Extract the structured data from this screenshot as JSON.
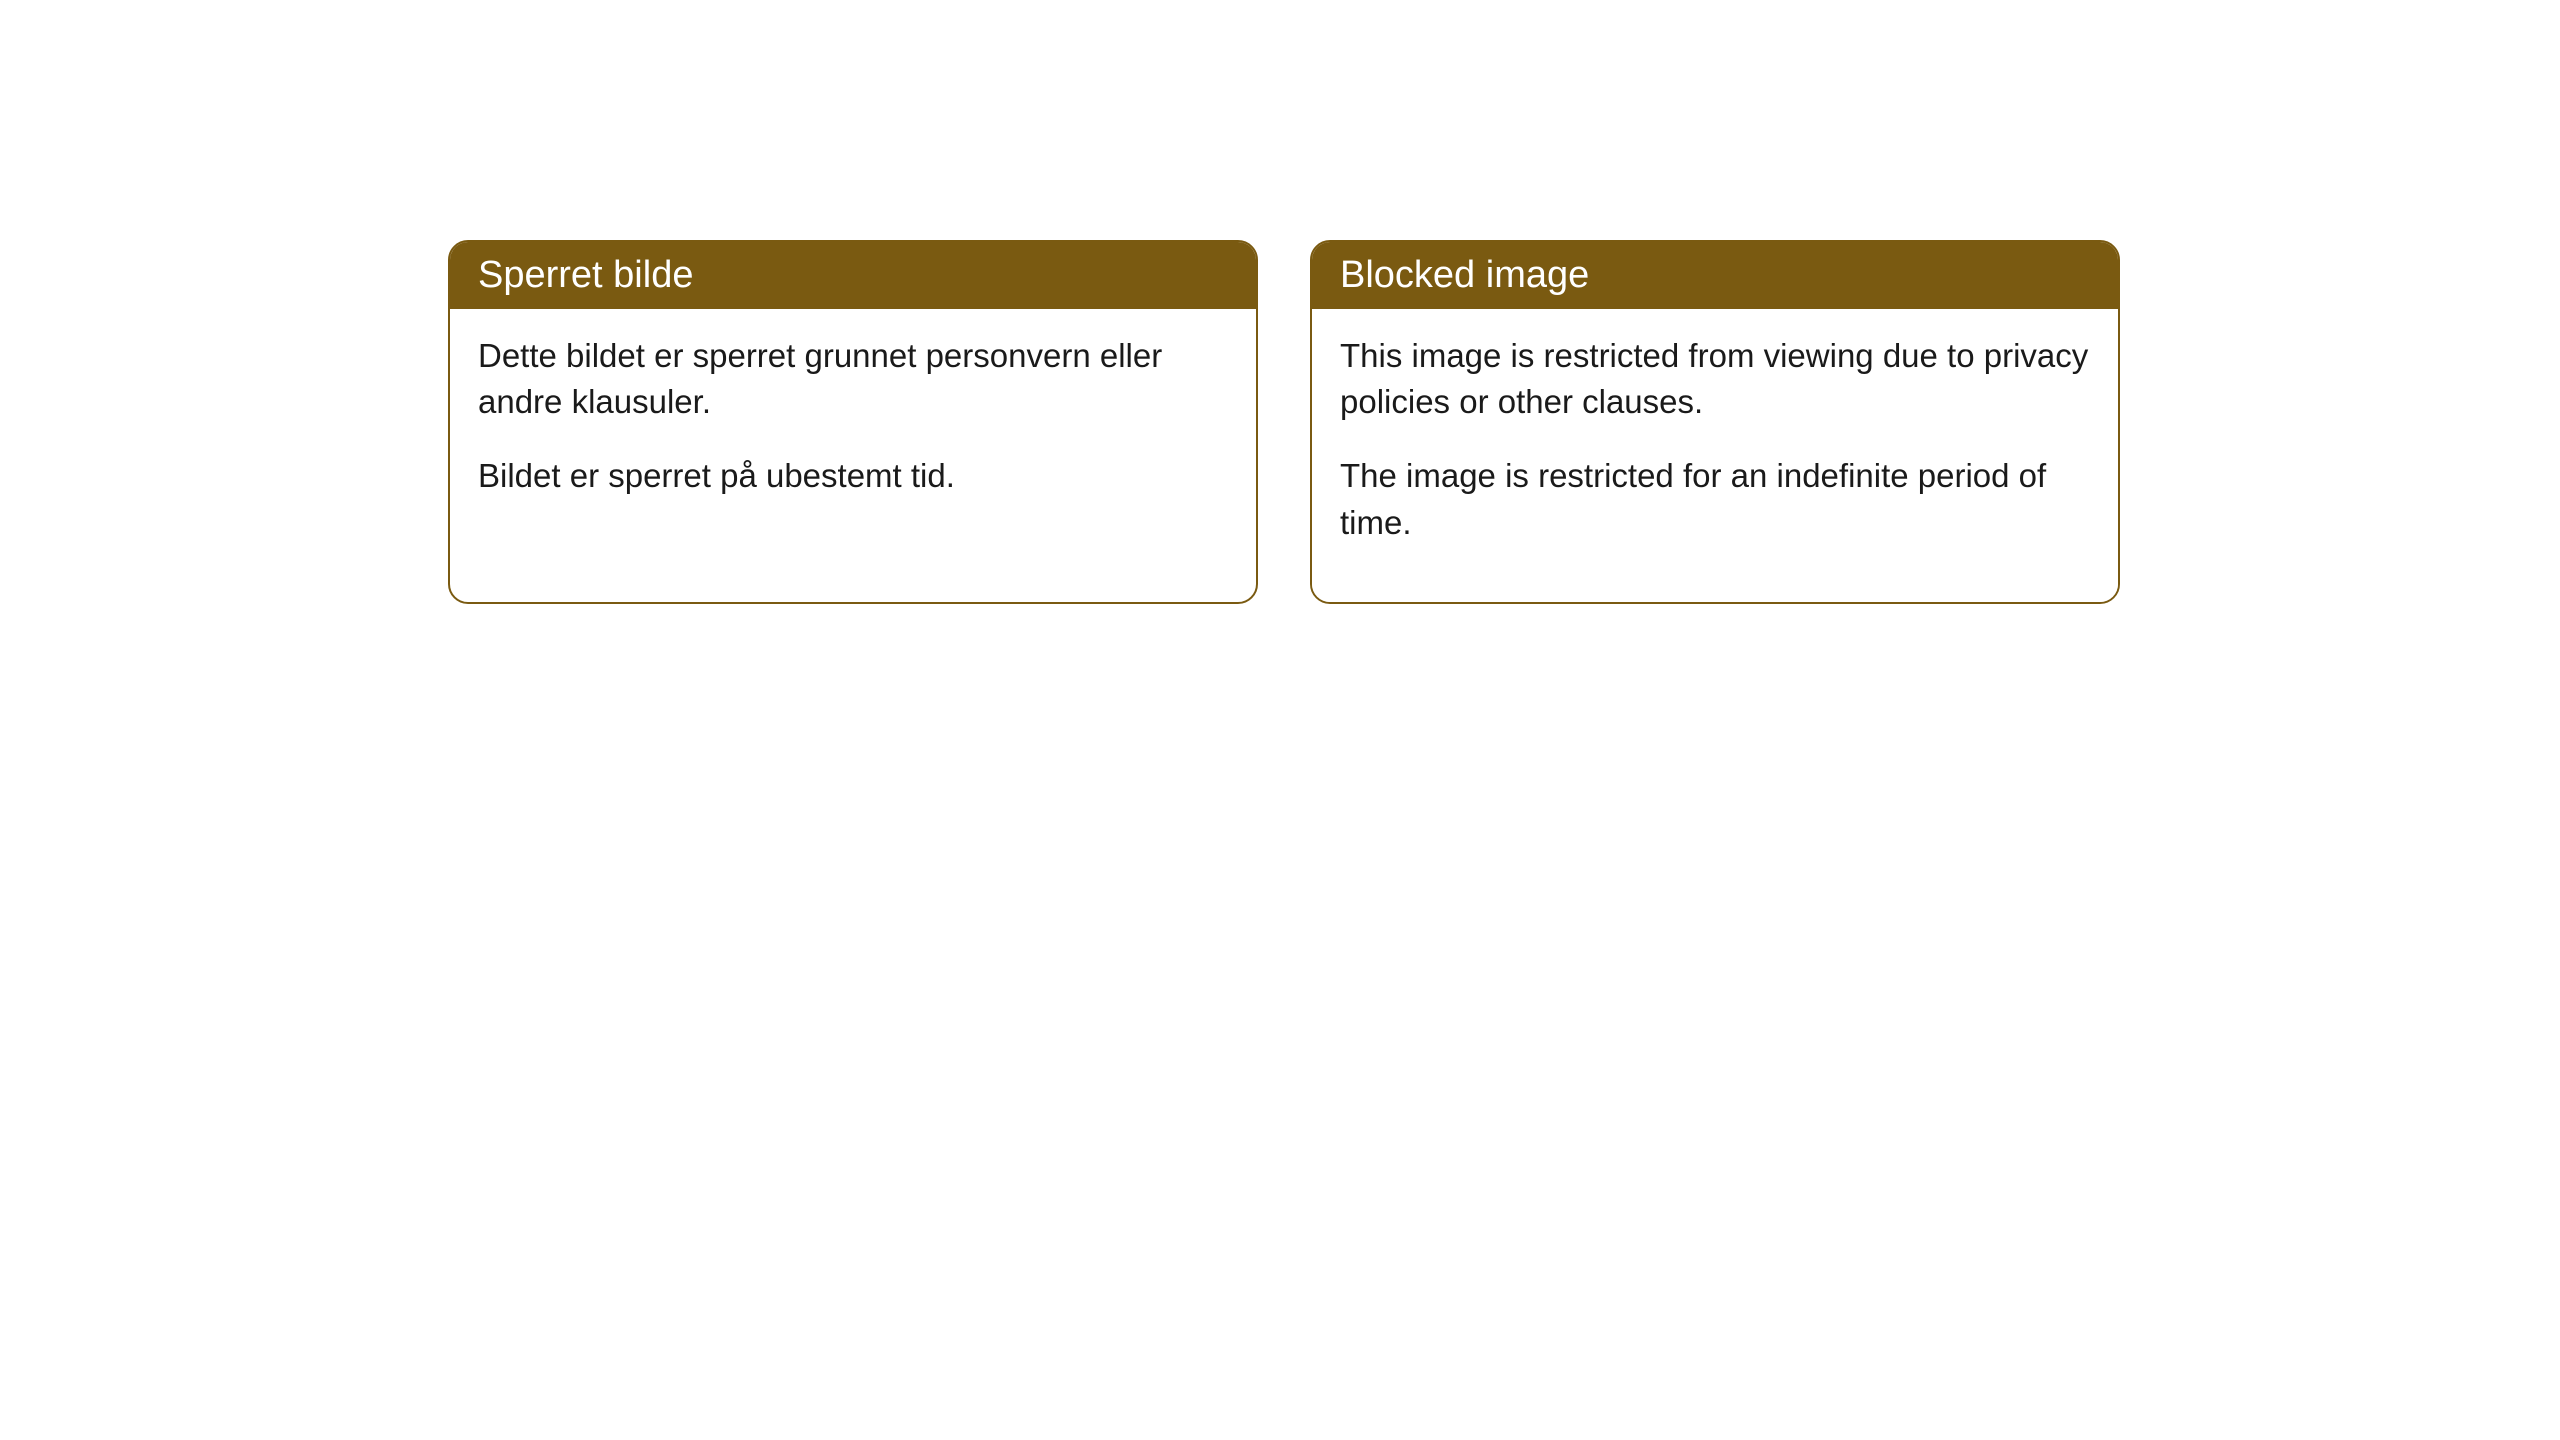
{
  "cards": [
    {
      "title": "Sperret bilde",
      "paragraph1": "Dette bildet er sperret grunnet personvern eller andre klausuler.",
      "paragraph2": "Bildet er sperret på ubestemt tid."
    },
    {
      "title": "Blocked image",
      "paragraph1": "This image is restricted from viewing due to privacy policies or other clauses.",
      "paragraph2": "The image is restricted for an indefinite period of time."
    }
  ],
  "styling": {
    "header_background": "#7a5a11",
    "header_text_color": "#ffffff",
    "border_color": "#7a5a11",
    "body_text_color": "#1a1a1a",
    "body_background": "#ffffff",
    "border_radius": 20,
    "title_fontsize": 38,
    "body_fontsize": 33
  }
}
